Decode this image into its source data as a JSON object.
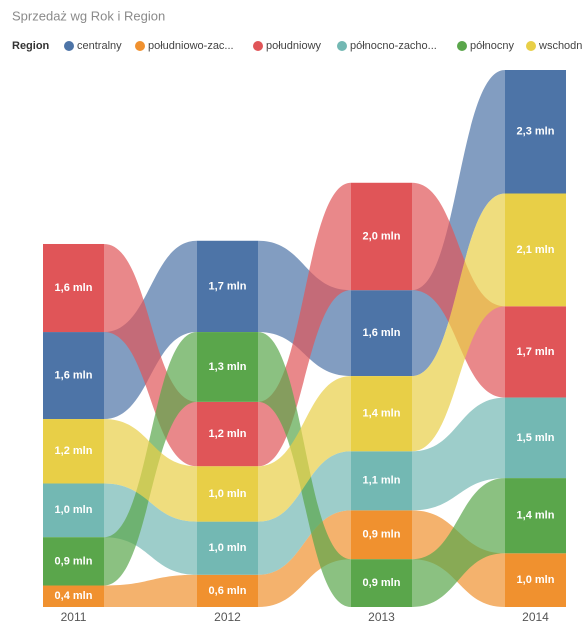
{
  "chart_data": {
    "type": "ribbon",
    "title": "Sprzedaż wg Rok i Region",
    "legend_title": "Region",
    "categories": [
      "2011",
      "2012",
      "2013",
      "2014"
    ],
    "series": [
      {
        "name": "centralny",
        "color": "#4d74a7",
        "values": [
          1.62,
          1.7,
          1.6,
          2.3
        ],
        "value_labels": [
          "1,6 mln",
          "1,7 mln",
          "1,6 mln",
          "2,3 mln"
        ]
      },
      {
        "name": "południowo-zac...",
        "color": "#f0912f",
        "values": [
          0.4,
          0.6,
          0.91,
          1.0
        ],
        "value_labels": [
          "0,4 mln",
          "0,6 mln",
          "0,9 mln",
          "1,0 mln"
        ]
      },
      {
        "name": "południowy",
        "color": "#e05558",
        "values": [
          1.64,
          1.2,
          2.0,
          1.7
        ],
        "value_labels": [
          "1,6 mln",
          "1,2 mln",
          "2,0 mln",
          "1,7 mln"
        ]
      },
      {
        "name": "północno-zacho...",
        "color": "#73b8b3",
        "values": [
          1.0,
          0.99,
          1.1,
          1.5
        ],
        "value_labels": [
          "1,0 mln",
          "1,0 mln",
          "1,1 mln",
          "1,5 mln"
        ]
      },
      {
        "name": "północny",
        "color": "#5aa64b",
        "values": [
          0.9,
          1.3,
          0.89,
          1.4
        ],
        "value_labels": [
          "0,9 mln",
          "1,3 mln",
          "0,9 mln",
          "1,4 mln"
        ]
      },
      {
        "name": "wschodni",
        "color": "#e8cf47",
        "values": [
          1.2,
          1.03,
          1.4,
          2.1
        ],
        "value_labels": [
          "1,2 mln",
          "1,0 mln",
          "1,4 mln",
          "2,1 mln"
        ]
      }
    ]
  }
}
